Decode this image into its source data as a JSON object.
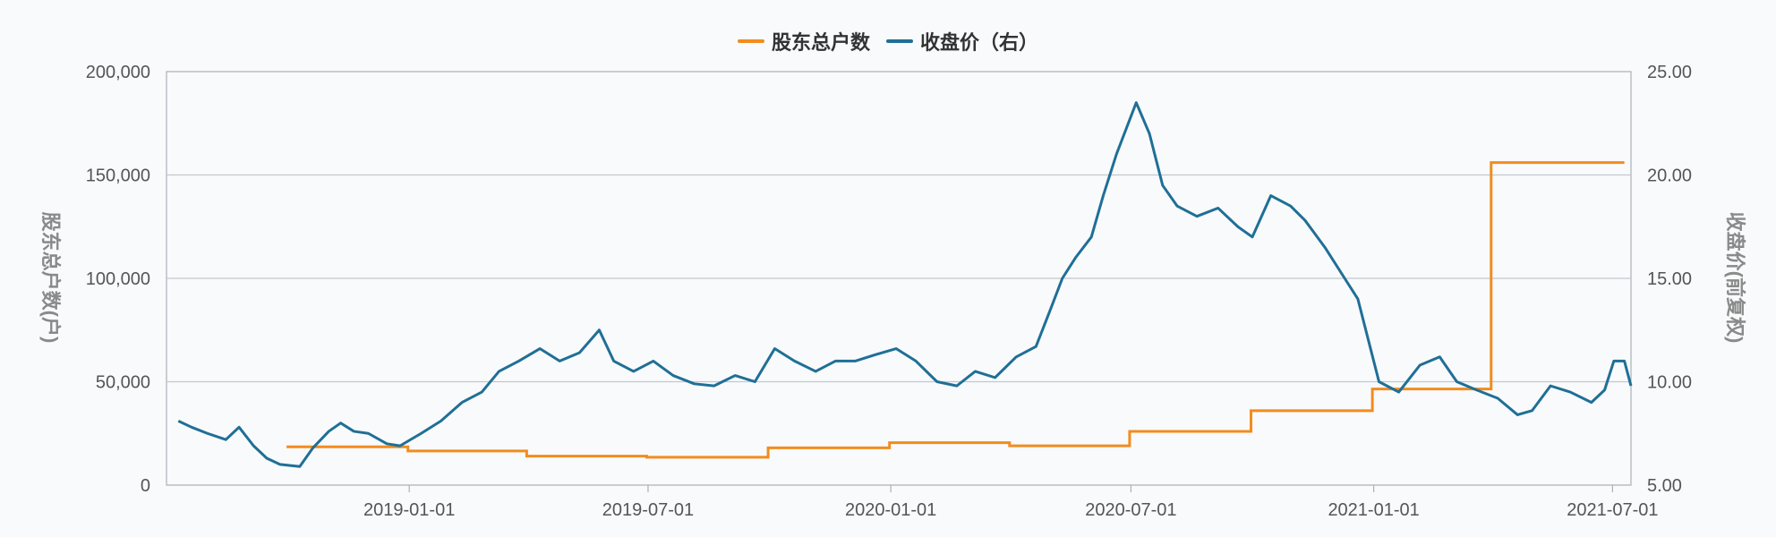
{
  "colors": {
    "holders": "#f28c1e",
    "price": "#1f6f96",
    "grid": "#c3c8cf",
    "axis": "#a9b0b8"
  },
  "legend": {
    "holders": "股东总户数",
    "price": "收盘价（右）"
  },
  "axes": {
    "left_title": "股东总户数(户)",
    "right_title": "收盘价(前复权)",
    "left_ticks": [
      "0",
      "50,000",
      "100,000",
      "150,000",
      "200,000"
    ],
    "right_ticks": [
      "5.00",
      "10.00",
      "15.00",
      "20.00",
      "25.00"
    ],
    "x_ticks": [
      "2019-01-01",
      "2019-07-01",
      "2020-01-01",
      "2020-07-01",
      "2021-01-01",
      "2021-07-01"
    ]
  },
  "chart_data": {
    "type": "line",
    "xrange": [
      "2018-07-01",
      "2021-07-15"
    ],
    "y_left_range": [
      0,
      200000
    ],
    "y_right_range": [
      5,
      25
    ],
    "grid": true,
    "legend_position": "top-center",
    "series": [
      {
        "name": "股东总户数",
        "axis": "left",
        "step": true,
        "points": [
          [
            "2018-09-30",
            18500
          ],
          [
            "2018-12-31",
            16500
          ],
          [
            "2019-03-31",
            14000
          ],
          [
            "2019-06-30",
            13500
          ],
          [
            "2019-09-30",
            18000
          ],
          [
            "2019-12-31",
            20500
          ],
          [
            "2020-03-31",
            19000
          ],
          [
            "2020-06-30",
            26000
          ],
          [
            "2020-09-30",
            36000
          ],
          [
            "2020-12-31",
            46500
          ],
          [
            "2021-03-31",
            156000
          ],
          [
            "2021-07-10",
            156000
          ]
        ]
      },
      {
        "name": "收盘价",
        "axis": "right",
        "points": [
          [
            "2018-07-10",
            8.1
          ],
          [
            "2018-07-20",
            7.8
          ],
          [
            "2018-08-01",
            7.5
          ],
          [
            "2018-08-15",
            7.2
          ],
          [
            "2018-08-25",
            7.8
          ],
          [
            "2018-09-05",
            6.9
          ],
          [
            "2018-09-15",
            6.3
          ],
          [
            "2018-09-25",
            6.0
          ],
          [
            "2018-10-10",
            5.9
          ],
          [
            "2018-10-20",
            6.8
          ],
          [
            "2018-11-01",
            7.6
          ],
          [
            "2018-11-10",
            8.0
          ],
          [
            "2018-11-20",
            7.6
          ],
          [
            "2018-12-01",
            7.5
          ],
          [
            "2018-12-15",
            7.0
          ],
          [
            "2018-12-25",
            6.9
          ],
          [
            "2019-01-10",
            7.5
          ],
          [
            "2019-01-25",
            8.1
          ],
          [
            "2019-02-10",
            9.0
          ],
          [
            "2019-02-25",
            9.5
          ],
          [
            "2019-03-10",
            10.5
          ],
          [
            "2019-03-25",
            11.0
          ],
          [
            "2019-04-10",
            11.6
          ],
          [
            "2019-04-25",
            11.0
          ],
          [
            "2019-05-10",
            11.4
          ],
          [
            "2019-05-25",
            12.5
          ],
          [
            "2019-06-05",
            11.0
          ],
          [
            "2019-06-20",
            10.5
          ],
          [
            "2019-07-05",
            11.0
          ],
          [
            "2019-07-20",
            10.3
          ],
          [
            "2019-08-05",
            9.9
          ],
          [
            "2019-08-20",
            9.8
          ],
          [
            "2019-09-05",
            10.3
          ],
          [
            "2019-09-20",
            10.0
          ],
          [
            "2019-10-05",
            11.6
          ],
          [
            "2019-10-20",
            11.0
          ],
          [
            "2019-11-05",
            10.5
          ],
          [
            "2019-11-20",
            11.0
          ],
          [
            "2019-12-05",
            11.0
          ],
          [
            "2019-12-20",
            11.3
          ],
          [
            "2020-01-05",
            11.6
          ],
          [
            "2020-01-20",
            11.0
          ],
          [
            "2020-02-05",
            10.0
          ],
          [
            "2020-02-20",
            9.8
          ],
          [
            "2020-03-05",
            10.5
          ],
          [
            "2020-03-20",
            10.2
          ],
          [
            "2020-04-05",
            11.2
          ],
          [
            "2020-04-20",
            11.7
          ],
          [
            "2020-05-01",
            13.5
          ],
          [
            "2020-05-10",
            15.0
          ],
          [
            "2020-05-20",
            16.0
          ],
          [
            "2020-06-01",
            17.0
          ],
          [
            "2020-06-10",
            19.0
          ],
          [
            "2020-06-20",
            21.0
          ],
          [
            "2020-07-05",
            23.5
          ],
          [
            "2020-07-15",
            22.0
          ],
          [
            "2020-07-25",
            19.5
          ],
          [
            "2020-08-05",
            18.5
          ],
          [
            "2020-08-20",
            18.0
          ],
          [
            "2020-09-05",
            18.4
          ],
          [
            "2020-09-20",
            17.5
          ],
          [
            "2020-10-01",
            17.0
          ],
          [
            "2020-10-15",
            19.0
          ],
          [
            "2020-10-30",
            18.5
          ],
          [
            "2020-11-10",
            17.8
          ],
          [
            "2020-11-25",
            16.5
          ],
          [
            "2020-12-10",
            15.0
          ],
          [
            "2020-12-20",
            14.0
          ],
          [
            "2021-01-05",
            10.0
          ],
          [
            "2021-01-20",
            9.5
          ],
          [
            "2021-02-05",
            10.8
          ],
          [
            "2021-02-20",
            11.2
          ],
          [
            "2021-03-05",
            10.0
          ],
          [
            "2021-03-20",
            9.6
          ],
          [
            "2021-04-05",
            9.2
          ],
          [
            "2021-04-20",
            8.4
          ],
          [
            "2021-05-01",
            8.6
          ],
          [
            "2021-05-15",
            9.8
          ],
          [
            "2021-05-30",
            9.5
          ],
          [
            "2021-06-15",
            9.0
          ],
          [
            "2021-06-25",
            9.6
          ],
          [
            "2021-07-02",
            11.0
          ],
          [
            "2021-07-10",
            11.0
          ],
          [
            "2021-07-15",
            9.8
          ]
        ]
      }
    ]
  }
}
